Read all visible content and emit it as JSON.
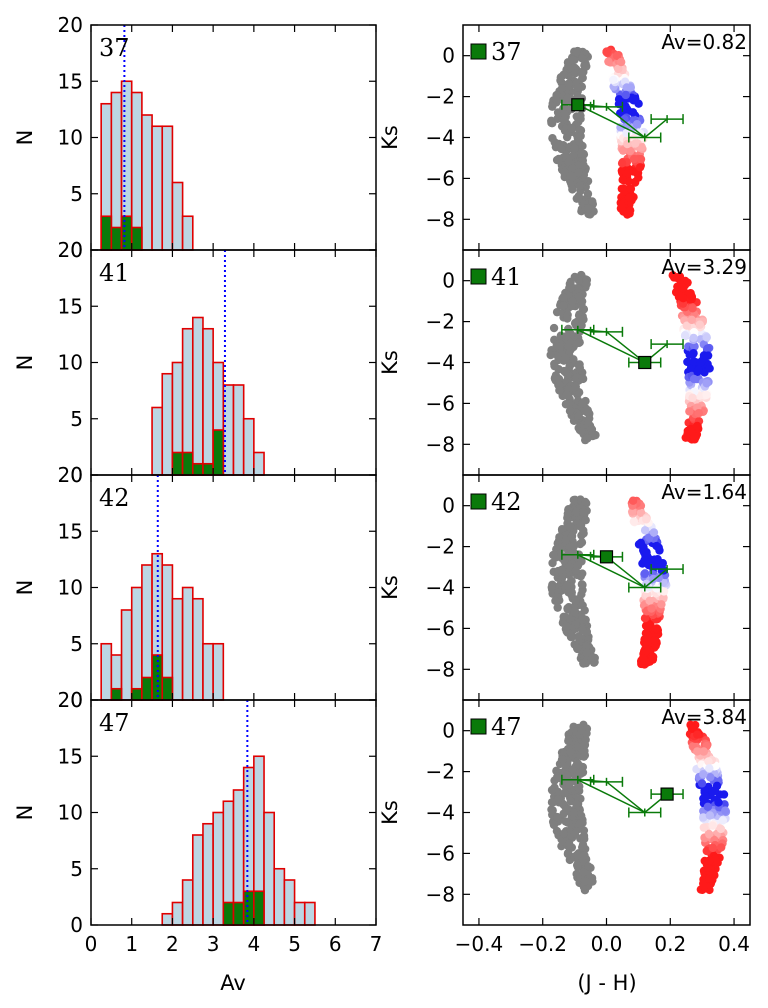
{
  "figure": {
    "x_label_left": "Av",
    "y_label_left": "N",
    "x_label_right": "(J - H)",
    "y_label_right": "Ks"
  },
  "colors": {
    "bar_fill": "#bcd6e3",
    "bar_edge": "#e00000",
    "subset_fill": "#0a7a0a",
    "grey": "#7f7f7f",
    "dotted_line": "#0000ff",
    "track": "#0a7a0a",
    "blue": "#1a1aee",
    "red": "#ff1a1a"
  },
  "left_axes": {
    "xlim": [
      0,
      7
    ],
    "ylim": [
      0,
      20
    ],
    "xticks": [
      "0",
      "1",
      "2",
      "3",
      "4",
      "5",
      "6",
      "7"
    ],
    "yticks": [
      "0",
      "5",
      "10",
      "15",
      "20"
    ]
  },
  "right_axes": {
    "xlim": [
      -0.45,
      0.45
    ],
    "ylim": [
      -9.5,
      1.5
    ],
    "xticks": [
      "−0.4",
      "−0.2",
      "0.0",
      "0.2",
      "0.4"
    ],
    "yticks": [
      "0",
      "−2",
      "−4",
      "−6",
      "−8"
    ]
  },
  "comparison_track": [
    {
      "jh": -0.09,
      "ks": -2.4,
      "err": 0.05
    },
    {
      "jh": 0.0,
      "ks": -2.5,
      "err": 0.05
    },
    {
      "jh": 0.12,
      "ks": -4.0,
      "err": 0.05
    },
    {
      "jh": 0.19,
      "ks": -3.1,
      "err": 0.05
    }
  ],
  "panels": [
    {
      "id": "37",
      "label": "37",
      "av_text": "Av=0.82",
      "best_av": 0.82,
      "marker": {
        "jh": -0.09,
        "ks": -2.4
      },
      "highlight": [
        -2.0,
        -3.0
      ],
      "chart_data": {
        "type": "bar",
        "bin_width": 0.25,
        "bin_starts": [
          0.25,
          0.5,
          0.75,
          1.0,
          1.25,
          1.5,
          1.75,
          2.0,
          2.25
        ],
        "values": [
          13,
          14,
          15,
          14,
          12,
          11,
          11,
          6,
          3
        ],
        "subset_values": [
          3,
          2,
          3,
          2,
          0,
          0,
          0,
          0,
          0
        ]
      }
    },
    {
      "id": "41",
      "label": "41",
      "av_text": "Av=3.29",
      "best_av": 3.29,
      "marker": {
        "jh": 0.12,
        "ks": -4.0
      },
      "highlight": [
        -3.4,
        -4.6
      ],
      "chart_data": {
        "type": "bar",
        "bin_width": 0.25,
        "bin_starts": [
          1.5,
          1.75,
          2.0,
          2.25,
          2.5,
          2.75,
          3.0,
          3.25,
          3.5,
          3.75,
          4.0
        ],
        "values": [
          6,
          9,
          10,
          13,
          14,
          13,
          10,
          8,
          8,
          5,
          2
        ],
        "subset_values": [
          0,
          0,
          2,
          2,
          1,
          1,
          4,
          0,
          0,
          0,
          0
        ]
      }
    },
    {
      "id": "42",
      "label": "42",
      "av_text": "Av=1.64",
      "best_av": 1.64,
      "marker": {
        "jh": 0.0,
        "ks": -2.5
      },
      "highlight": [
        -1.8,
        -3.2
      ],
      "chart_data": {
        "type": "bar",
        "bin_width": 0.25,
        "bin_starts": [
          0.25,
          0.5,
          0.75,
          1.0,
          1.25,
          1.5,
          1.75,
          2.0,
          2.25,
          2.5,
          2.75,
          3.0
        ],
        "values": [
          5,
          4,
          8,
          10,
          12,
          13,
          12,
          9,
          10,
          9,
          5,
          5
        ],
        "subset_values": [
          0,
          1,
          0,
          1,
          2,
          4,
          2,
          0,
          0,
          0,
          0,
          0
        ]
      }
    },
    {
      "id": "47",
      "label": "47",
      "av_text": "Av=3.84",
      "best_av": 3.84,
      "marker": {
        "jh": 0.19,
        "ks": -3.1
      },
      "highlight": [
        -2.6,
        -3.6
      ],
      "chart_data": {
        "type": "bar",
        "bin_width": 0.25,
        "bin_starts": [
          1.75,
          2.0,
          2.25,
          2.5,
          2.75,
          3.0,
          3.25,
          3.5,
          3.75,
          4.0,
          4.25,
          4.5,
          4.75,
          5.0,
          5.25
        ],
        "values": [
          1,
          2,
          4,
          8,
          9,
          10,
          11,
          12,
          14,
          15,
          10,
          5,
          4,
          2,
          2
        ],
        "subset_values": [
          0,
          0,
          0,
          0,
          0,
          0,
          2,
          2,
          3,
          3,
          0,
          0,
          0,
          0,
          0
        ]
      }
    }
  ]
}
